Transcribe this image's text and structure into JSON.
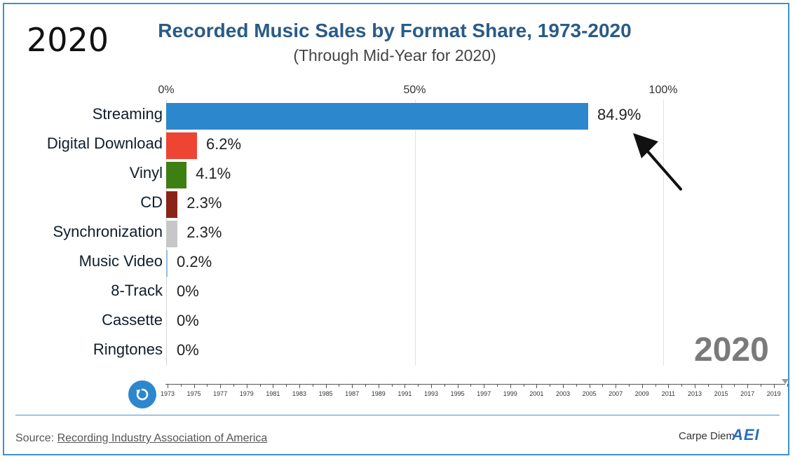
{
  "corner_year": "2020",
  "chart_data": {
    "type": "bar",
    "title": "Recorded Music Sales by Format Share, 1973-2020",
    "subtitle": "(Through Mid-Year for 2020)",
    "xlim": [
      0,
      100
    ],
    "x_ticks": [
      "0%",
      "50%",
      "100%"
    ],
    "grid": true,
    "current_year": "2020",
    "categories": [
      "Streaming",
      "Digital Download",
      "Vinyl",
      "CD",
      "Synchronization",
      "Music Video",
      "8-Track",
      "Cassette",
      "Ringtones"
    ],
    "values": [
      84.9,
      6.2,
      4.1,
      2.3,
      2.3,
      0.2,
      0,
      0,
      0
    ],
    "value_labels": [
      "84.9%",
      "6.2%",
      "4.1%",
      "2.3%",
      "2.3%",
      "0.2%",
      "0%",
      "0%",
      "0%"
    ],
    "colors": [
      "#2d87cd",
      "#ee4433",
      "#3d7f12",
      "#8b2418",
      "#c7c7c7",
      "#9ab9d9",
      "#cccccc",
      "#cccccc",
      "#cccccc"
    ]
  },
  "timeline": {
    "labels": [
      "1973",
      "1975",
      "1977",
      "1979",
      "1981",
      "1983",
      "1985",
      "1987",
      "1989",
      "1991",
      "1993",
      "1995",
      "1997",
      "1999",
      "2001",
      "2003",
      "2005",
      "2007",
      "2009",
      "2011",
      "2013",
      "2015",
      "2017",
      "2019"
    ],
    "replay_icon": "replay-icon"
  },
  "footer": {
    "source_prefix": "Source: ",
    "source_link": "Recording Industry Association of America",
    "brand": "Carpe Diem",
    "logo": "AEI"
  }
}
